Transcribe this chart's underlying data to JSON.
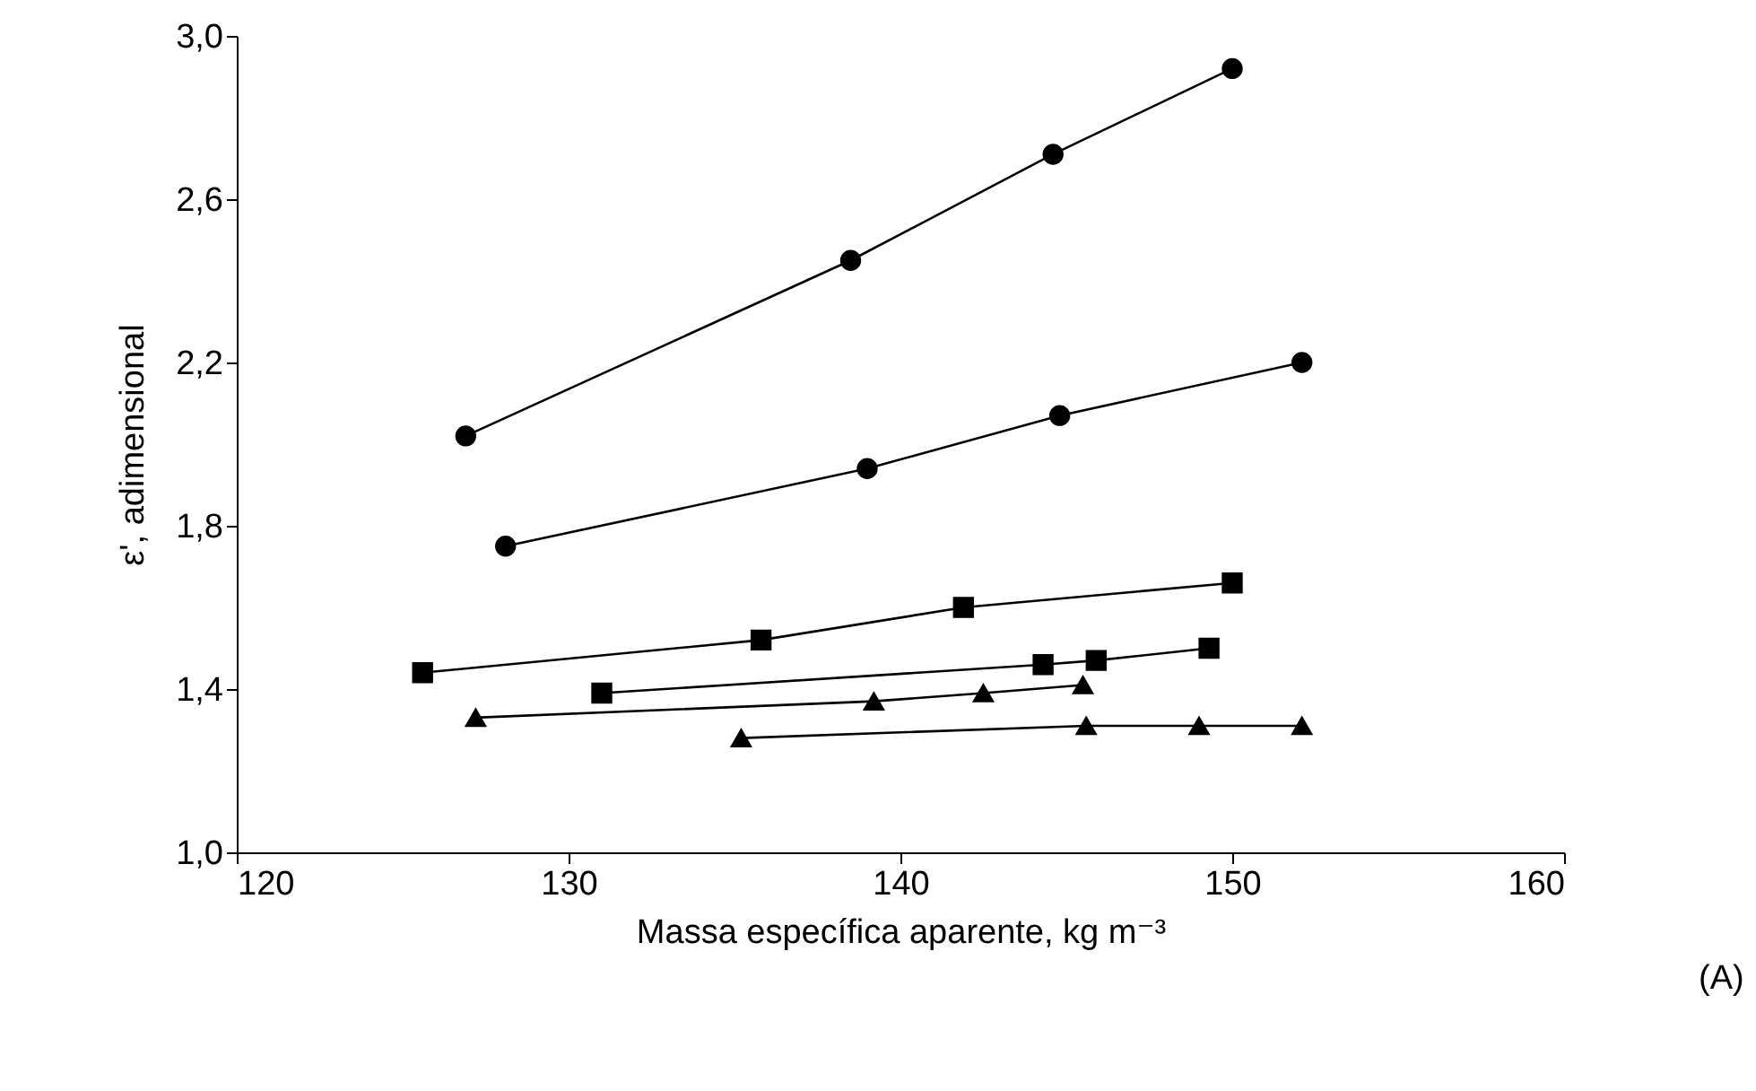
{
  "chart_data": {
    "type": "line",
    "xlabel": "Massa específica aparente, kg m⁻³",
    "ylabel": "ε', adimensional",
    "annotations": [
      "(A)"
    ],
    "xlim": [
      120,
      160
    ],
    "xticks": [
      120,
      130,
      140,
      150,
      160
    ],
    "ylim": [
      1.0,
      3.0
    ],
    "yticks": [
      {
        "value": 1.0,
        "label": "1,0"
      },
      {
        "value": 1.4,
        "label": "1,4"
      },
      {
        "value": 1.8,
        "label": "1,8"
      },
      {
        "value": 2.2,
        "label": "2,2"
      },
      {
        "value": 2.6,
        "label": "2,6"
      },
      {
        "value": 3.0,
        "label": "3,0"
      }
    ],
    "grid": false,
    "line_style": "solid",
    "series": [
      {
        "color": "#000000",
        "marker": "circle",
        "x": [
          126.9,
          138.5,
          144.6,
          150.0
        ],
        "values": [
          2.02,
          2.45,
          2.71,
          2.92
        ]
      },
      {
        "color": "#000000",
        "marker": "circle",
        "x": [
          128.1,
          139.0,
          144.8,
          152.1
        ],
        "values": [
          1.75,
          1.94,
          2.07,
          2.2
        ]
      },
      {
        "color": "#000000",
        "marker": "square",
        "x": [
          125.6,
          135.8,
          141.9,
          150.0
        ],
        "values": [
          1.44,
          1.52,
          1.6,
          1.66
        ]
      },
      {
        "color": "#000000",
        "marker": "square",
        "x": [
          131.0,
          144.3,
          145.9,
          149.3
        ],
        "values": [
          1.39,
          1.46,
          1.47,
          1.5
        ]
      },
      {
        "color": "#000000",
        "marker": "triangle",
        "x": [
          127.2,
          139.2,
          142.5,
          145.5
        ],
        "values": [
          1.33,
          1.37,
          1.39,
          1.41
        ]
      },
      {
        "color": "#000000",
        "marker": "triangle",
        "x": [
          135.2,
          145.6,
          149.0,
          152.1
        ],
        "values": [
          1.28,
          1.31,
          1.31,
          1.31
        ]
      }
    ]
  }
}
